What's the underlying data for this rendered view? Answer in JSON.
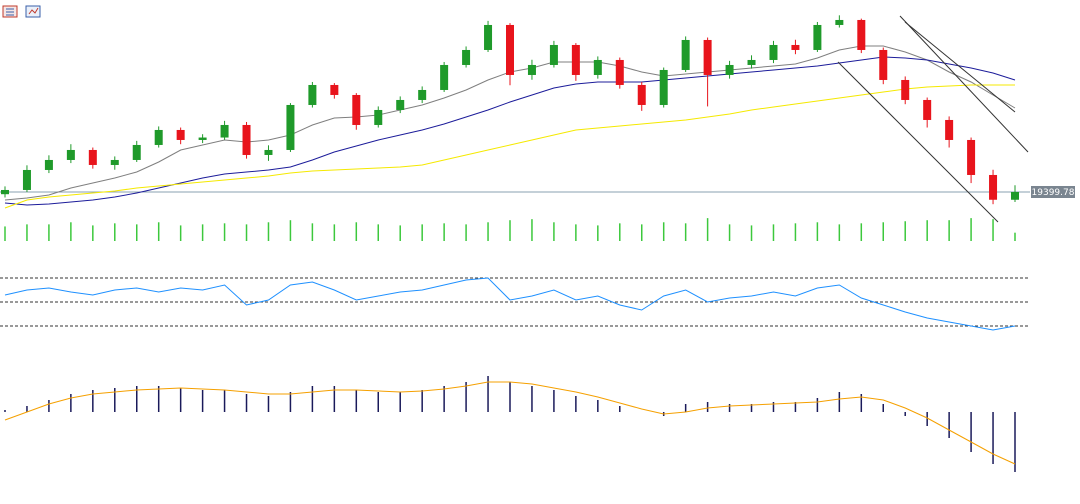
{
  "chart_data": [
    {
      "type": "candlestick",
      "open": [
        19380,
        19418,
        19598,
        19688,
        19778,
        19643,
        19688,
        19823,
        19958,
        19868,
        19890,
        20003,
        19733,
        19778,
        20183,
        20363,
        20273,
        20003,
        20138,
        20228,
        20318,
        20543,
        20678,
        20903,
        20453,
        20543,
        20723,
        20453,
        20588,
        20363,
        20183,
        20498,
        20768,
        20453,
        20543,
        20588,
        20723,
        20678,
        20903,
        20948,
        20678,
        20408,
        20228,
        20048,
        19868,
        19553,
        19330
      ],
      "high": [
        19450,
        19640,
        19730,
        19830,
        19800,
        19720,
        19860,
        19990,
        19980,
        19920,
        20040,
        20030,
        19820,
        20200,
        20390,
        20380,
        20290,
        20170,
        20260,
        20350,
        20570,
        20710,
        20940,
        20920,
        20590,
        20760,
        20740,
        20620,
        20610,
        20390,
        20520,
        20800,
        20790,
        20580,
        20630,
        20760,
        20770,
        20930,
        20990,
        20960,
        20700,
        20440,
        20250,
        20080,
        19890,
        19600,
        19460
      ],
      "low": [
        19350,
        19400,
        19570,
        19660,
        19610,
        19600,
        19670,
        19800,
        19830,
        19840,
        19870,
        19700,
        19680,
        19760,
        20160,
        20240,
        19960,
        19980,
        20110,
        20200,
        20300,
        20520,
        20660,
        20360,
        20410,
        20520,
        20400,
        20420,
        20330,
        20130,
        20160,
        20480,
        20170,
        20420,
        20510,
        20560,
        20640,
        20660,
        20880,
        20650,
        20370,
        20190,
        19980,
        19800,
        19480,
        19290,
        19310
      ],
      "close": [
        19418,
        19598,
        19688,
        19778,
        19643,
        19688,
        19823,
        19958,
        19868,
        19890,
        20003,
        19733,
        19778,
        20183,
        20363,
        20273,
        20003,
        20138,
        20228,
        20318,
        20543,
        20678,
        20903,
        20453,
        20543,
        20723,
        20453,
        20588,
        20363,
        20183,
        20498,
        20768,
        20453,
        20543,
        20588,
        20723,
        20678,
        20903,
        20948,
        20678,
        20408,
        20228,
        20048,
        19868,
        19553,
        19330,
        19399.78
      ],
      "up_color": "#1f9a2a",
      "down_color": "#e8141c",
      "ylim": [
        19237.78,
        21082.78
      ],
      "price_line": 19399.78,
      "series": [
        {
          "color": "#7f7f7f",
          "values": [
            19328,
            19346,
            19373,
            19436,
            19481,
            19526,
            19580,
            19670,
            19778,
            19823,
            19868,
            19850,
            19868,
            19913,
            20003,
            20066,
            20075,
            20093,
            20138,
            20183,
            20246,
            20318,
            20408,
            20480,
            20516,
            20570,
            20570,
            20570,
            20534,
            20480,
            20444,
            20462,
            20480,
            20498,
            20516,
            20534,
            20552,
            20606,
            20678,
            20714,
            20714,
            20660,
            20588,
            20480,
            20390,
            20273,
            20156
          ]
        },
        {
          "color": "#1c1c9a",
          "values": [
            19301,
            19283,
            19292,
            19310,
            19328,
            19355,
            19391,
            19436,
            19481,
            19526,
            19562,
            19580,
            19598,
            19625,
            19688,
            19760,
            19814,
            19868,
            19913,
            19958,
            20012,
            20075,
            20138,
            20210,
            20273,
            20336,
            20372,
            20390,
            20390,
            20390,
            20408,
            20426,
            20444,
            20462,
            20480,
            20498,
            20516,
            20534,
            20561,
            20588,
            20615,
            20606,
            20588,
            20552,
            20516,
            20471,
            20408
          ]
        },
        {
          "color": "#f5e900",
          "values": [
            19256,
            19328,
            19355,
            19373,
            19391,
            19409,
            19436,
            19454,
            19472,
            19490,
            19508,
            19526,
            19544,
            19571,
            19589,
            19598,
            19607,
            19616,
            19625,
            19643,
            19688,
            19733,
            19778,
            19823,
            19868,
            19913,
            19958,
            19976,
            19994,
            20012,
            20030,
            20048,
            20075,
            20102,
            20138,
            20165,
            20192,
            20219,
            20246,
            20273,
            20300,
            20327,
            20345,
            20354,
            20363,
            20363,
            20363
          ]
        }
      ]
    },
    {
      "type": "bar",
      "values": [
        14,
        16,
        16,
        18,
        15,
        17,
        16,
        18,
        15,
        16,
        17,
        16,
        18,
        20,
        17,
        16,
        18,
        16,
        15,
        16,
        17,
        16,
        18,
        20,
        21,
        18,
        16,
        15,
        17,
        16,
        18,
        17,
        22,
        16,
        15,
        16,
        17,
        18,
        16,
        17,
        18,
        19,
        20,
        20,
        22,
        21,
        8
      ],
      "color": "#3cc83c",
      "ylim": [
        0,
        25
      ]
    },
    {
      "type": "line",
      "values": [
        55.8,
        60,
        61.7,
        58.3,
        55.8,
        60,
        61.7,
        58.3,
        61.7,
        60,
        64.2,
        47.5,
        51.7,
        64.2,
        66.7,
        60,
        51.7,
        55,
        58.3,
        60,
        64.2,
        68.3,
        70,
        51.7,
        55,
        60,
        51.7,
        55,
        47.5,
        43.3,
        55,
        60,
        50,
        53.3,
        55,
        58.3,
        55,
        61.7,
        64.2,
        53.3,
        47.5,
        41.7,
        36.7,
        33.3,
        30,
        26.7,
        30
      ],
      "color": "#1e90ff",
      "ylim": [
        20,
        80
      ],
      "levels": [
        30,
        50,
        70
      ]
    },
    {
      "type": "macd",
      "histogram": [
        4,
        12,
        24,
        36,
        44,
        48,
        52,
        52,
        48,
        44,
        44,
        36,
        32,
        40,
        52,
        52,
        44,
        40,
        40,
        44,
        52,
        60,
        72,
        60,
        52,
        44,
        32,
        24,
        12,
        0,
        -8,
        16,
        20,
        16,
        16,
        20,
        20,
        28,
        40,
        36,
        16,
        -8,
        -28,
        -52,
        -80,
        -104,
        -120
      ],
      "signal": [
        -16,
        0,
        16,
        28,
        36,
        40,
        44,
        46,
        48,
        46,
        44,
        40,
        36,
        36,
        40,
        44,
        44,
        42,
        40,
        42,
        46,
        52,
        60,
        60,
        56,
        48,
        40,
        30,
        18,
        6,
        -4,
        0,
        8,
        12,
        14,
        16,
        18,
        20,
        26,
        30,
        24,
        8,
        -12,
        -36,
        -60,
        -84,
        -104
      ],
      "hist_color": "#1a1a5a",
      "signal_color": "#f5a000",
      "ylim": [
        -136,
        94
      ]
    }
  ]
}
